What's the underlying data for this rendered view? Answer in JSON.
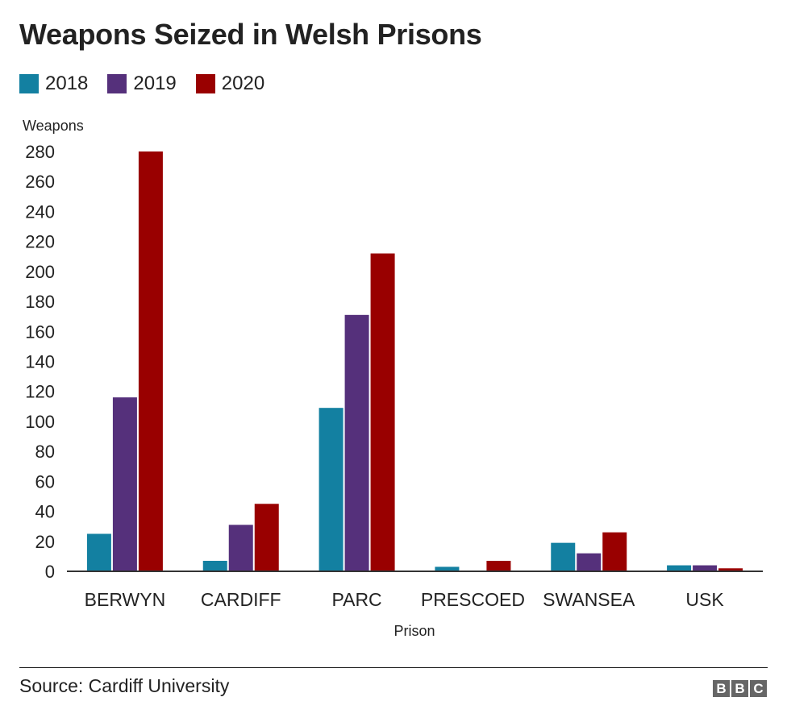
{
  "chart_data": {
    "type": "bar",
    "title": "Weapons Seized in Welsh Prisons",
    "ylabel": "Weapons",
    "xlabel": "Prison",
    "categories": [
      "BERWYN",
      "CARDIFF",
      "PARC",
      "PRESCOED",
      "SWANSEA",
      "USK"
    ],
    "series": [
      {
        "name": "2018",
        "color": "#1380a1",
        "values": [
          25,
          7,
          109,
          3,
          19,
          4
        ]
      },
      {
        "name": "2019",
        "color": "#55307b",
        "values": [
          116,
          31,
          171,
          0,
          12,
          4
        ]
      },
      {
        "name": "2020",
        "color": "#990000",
        "values": [
          280,
          45,
          212,
          7,
          26,
          2
        ]
      }
    ],
    "ylim": [
      0,
      280
    ],
    "yticks": [
      "0",
      "20",
      "40",
      "60",
      "80",
      "100",
      "120",
      "140",
      "160",
      "180",
      "200",
      "220",
      "240",
      "260",
      "280"
    ],
    "grid": false,
    "legend": "top-left"
  },
  "footer": {
    "source": "Source: Cardiff University",
    "logo_letters": [
      "B",
      "B",
      "C"
    ]
  }
}
